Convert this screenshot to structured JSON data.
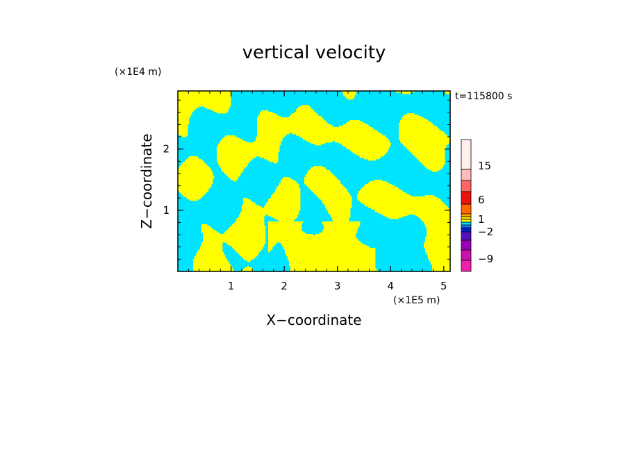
{
  "chart_data": {
    "type": "heatmap",
    "title": "vertical velocity",
    "xlabel": "X−coordinate",
    "ylabel": "Z−coordinate",
    "x_unit": "(×1E5 m)",
    "y_unit": "(×1E4 m)",
    "time_label": "t=115800 s",
    "xlim": [
      0,
      5.12
    ],
    "ylim": [
      0,
      2.95
    ],
    "x_ticks": [
      1,
      2,
      3,
      4,
      5
    ],
    "x_tick_labels": [
      "1",
      "2",
      "3",
      "4",
      "5"
    ],
    "y_ticks": [
      1,
      2
    ],
    "y_tick_labels": [
      "1",
      "2"
    ],
    "dominant_colors": [
      "#ffff00",
      "#00e5ff"
    ],
    "colorbar": {
      "levels": [
        "-12",
        "-9",
        "-6",
        "-4",
        "-2",
        "-1",
        "0",
        "1",
        "2",
        "3",
        "6",
        "10",
        "15",
        "20",
        "25"
      ],
      "colors": [
        "#ee22aa",
        "#cc11aa",
        "#9900bb",
        "#5511bb",
        "#0022cc",
        "#2277ff",
        "#00e5ff",
        "#ffff00",
        "#ffdd00",
        "#ffaa00",
        "#ff6600",
        "#ee1111",
        "#ff6666",
        "#ffbbbb",
        "#ffeeee"
      ],
      "tick_labels": [
        "15",
        "6",
        "1",
        "−2",
        "−9"
      ],
      "tick_values": [
        15,
        6,
        1,
        -2,
        -9
      ]
    }
  }
}
